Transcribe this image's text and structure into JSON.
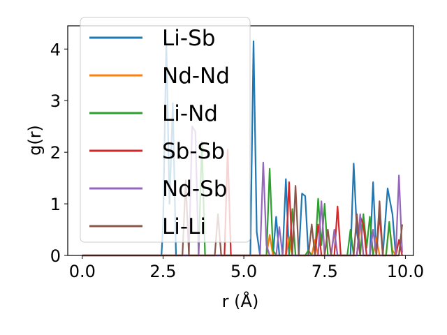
{
  "chart_data": {
    "type": "line",
    "xlabel": "r (Å)",
    "ylabel": "g(r)",
    "xlim": [
      -0.45,
      10.25
    ],
    "ylim": [
      0,
      4.45
    ],
    "xticks": [
      0.0,
      2.5,
      5.0,
      7.5,
      10.0
    ],
    "xtick_labels": [
      "0.0",
      "2.5",
      "5.0",
      "7.5",
      "10.0"
    ],
    "yticks": [
      0,
      1,
      2,
      3,
      4
    ],
    "ytick_labels": [
      "0",
      "1",
      "2",
      "3",
      "4"
    ],
    "grid": false,
    "legend_position": "upper-left",
    "series": [
      {
        "name": "Li-Sb",
        "color": "#1f77b4",
        "points": [
          [
            0,
            0
          ],
          [
            2.45,
            0
          ],
          [
            2.5,
            0.6
          ],
          [
            2.6,
            4.15
          ],
          [
            2.7,
            1.0
          ],
          [
            2.8,
            2.95
          ],
          [
            2.9,
            0
          ],
          [
            5.2,
            0
          ],
          [
            5.3,
            4.15
          ],
          [
            5.4,
            0.45
          ],
          [
            5.5,
            0
          ],
          [
            5.9,
            0
          ],
          [
            6.0,
            0.75
          ],
          [
            6.1,
            0
          ],
          [
            6.2,
            0
          ],
          [
            6.3,
            1.48
          ],
          [
            6.4,
            0
          ],
          [
            6.7,
            0
          ],
          [
            6.8,
            1.2
          ],
          [
            6.9,
            1.15
          ],
          [
            7.0,
            0
          ],
          [
            8.3,
            0
          ],
          [
            8.4,
            1.78
          ],
          [
            8.5,
            0.45
          ],
          [
            8.6,
            0
          ],
          [
            8.9,
            0
          ],
          [
            9.0,
            1.42
          ],
          [
            9.1,
            0
          ],
          [
            9.3,
            0
          ],
          [
            9.45,
            1.3
          ],
          [
            9.6,
            0.8
          ],
          [
            9.7,
            0
          ]
        ]
      },
      {
        "name": "Nd-Nd",
        "color": "#ff7f0e",
        "points": [
          [
            0,
            0
          ],
          [
            5.7,
            0
          ],
          [
            5.8,
            0.4
          ],
          [
            5.9,
            0
          ],
          [
            6.3,
            0
          ],
          [
            6.4,
            0.35
          ],
          [
            6.5,
            0
          ],
          [
            7.1,
            0
          ],
          [
            7.2,
            0.3
          ],
          [
            7.3,
            0
          ],
          [
            7.7,
            0
          ],
          [
            7.8,
            0.45
          ],
          [
            7.9,
            0
          ],
          [
            8.5,
            0
          ],
          [
            8.6,
            0.65
          ],
          [
            8.7,
            0
          ],
          [
            9.0,
            0
          ],
          [
            9.1,
            0.35
          ],
          [
            9.2,
            0
          ],
          [
            9.4,
            0
          ],
          [
            9.5,
            0.6
          ],
          [
            9.6,
            0.1
          ],
          [
            9.7,
            0
          ]
        ]
      },
      {
        "name": "Li-Nd",
        "color": "#2ca02c",
        "points": [
          [
            0,
            0
          ],
          [
            3.6,
            0
          ],
          [
            3.7,
            2.2
          ],
          [
            3.8,
            0
          ],
          [
            5.7,
            0
          ],
          [
            5.8,
            1.68
          ],
          [
            5.9,
            0.1
          ],
          [
            6.0,
            0
          ],
          [
            6.4,
            0
          ],
          [
            6.5,
            0.9
          ],
          [
            6.6,
            0
          ],
          [
            6.9,
            0
          ],
          [
            7.0,
            0.1
          ],
          [
            7.1,
            0
          ],
          [
            7.2,
            0
          ],
          [
            7.3,
            1.1
          ],
          [
            7.4,
            0.2
          ],
          [
            7.5,
            1.0
          ],
          [
            7.6,
            0
          ],
          [
            8.2,
            0
          ],
          [
            8.3,
            0.5
          ],
          [
            8.4,
            0
          ],
          [
            8.6,
            0
          ],
          [
            8.7,
            0.8
          ],
          [
            8.8,
            0.15
          ],
          [
            8.9,
            0.75
          ],
          [
            9.0,
            0
          ],
          [
            9.4,
            0
          ],
          [
            9.5,
            0.65
          ],
          [
            9.6,
            0
          ],
          [
            9.8,
            0
          ],
          [
            9.9,
            0.6
          ]
        ]
      },
      {
        "name": "Sb-Sb",
        "color": "#d62728",
        "points": [
          [
            0,
            0
          ],
          [
            4.4,
            0
          ],
          [
            4.5,
            2.05
          ],
          [
            4.6,
            0
          ],
          [
            6.3,
            0
          ],
          [
            6.4,
            1.42
          ],
          [
            6.5,
            0
          ],
          [
            7.2,
            0
          ],
          [
            7.3,
            0.6
          ],
          [
            7.4,
            0
          ],
          [
            7.8,
            0
          ],
          [
            7.9,
            0.95
          ],
          [
            8.0,
            0
          ],
          [
            8.5,
            0
          ],
          [
            8.6,
            0.75
          ],
          [
            8.7,
            0.6
          ],
          [
            8.8,
            0
          ],
          [
            9.1,
            0
          ],
          [
            9.2,
            0.8
          ],
          [
            9.3,
            0
          ],
          [
            9.7,
            0
          ],
          [
            9.8,
            0.3
          ],
          [
            9.9,
            0
          ]
        ]
      },
      {
        "name": "Nd-Sb",
        "color": "#9467bd",
        "points": [
          [
            0,
            0
          ],
          [
            3.3,
            0
          ],
          [
            3.4,
            2.5
          ],
          [
            3.5,
            2.4
          ],
          [
            3.6,
            0
          ],
          [
            5.5,
            0
          ],
          [
            5.6,
            1.8
          ],
          [
            5.7,
            0.2
          ],
          [
            5.8,
            0
          ],
          [
            6.0,
            0
          ],
          [
            6.1,
            0.55
          ],
          [
            6.2,
            0
          ],
          [
            7.3,
            0
          ],
          [
            7.4,
            1.05
          ],
          [
            7.5,
            0
          ],
          [
            7.7,
            0
          ],
          [
            7.8,
            0.5
          ],
          [
            7.9,
            0
          ],
          [
            8.5,
            0
          ],
          [
            8.6,
            0.8
          ],
          [
            8.7,
            0
          ],
          [
            8.9,
            0
          ],
          [
            9.0,
            0.5
          ],
          [
            9.1,
            0
          ],
          [
            9.7,
            0
          ],
          [
            9.8,
            1.55
          ],
          [
            9.9,
            0.05
          ]
        ]
      },
      {
        "name": "Li-Li",
        "color": "#8c564b",
        "points": [
          [
            0,
            0
          ],
          [
            3.1,
            0
          ],
          [
            3.2,
            1.45
          ],
          [
            3.3,
            0
          ],
          [
            4.1,
            0
          ],
          [
            4.2,
            0.8
          ],
          [
            4.3,
            0
          ],
          [
            6.5,
            0
          ],
          [
            6.6,
            1.35
          ],
          [
            6.7,
            0
          ],
          [
            7.0,
            0
          ],
          [
            7.1,
            0.6
          ],
          [
            7.2,
            0
          ],
          [
            7.5,
            0
          ],
          [
            7.6,
            0.5
          ],
          [
            7.7,
            0
          ],
          [
            8.4,
            0
          ],
          [
            8.5,
            0.8
          ],
          [
            8.6,
            0
          ],
          [
            9.1,
            0
          ],
          [
            9.2,
            1.05
          ],
          [
            9.3,
            0
          ],
          [
            9.8,
            0
          ],
          [
            9.9,
            0.6
          ]
        ]
      }
    ]
  }
}
